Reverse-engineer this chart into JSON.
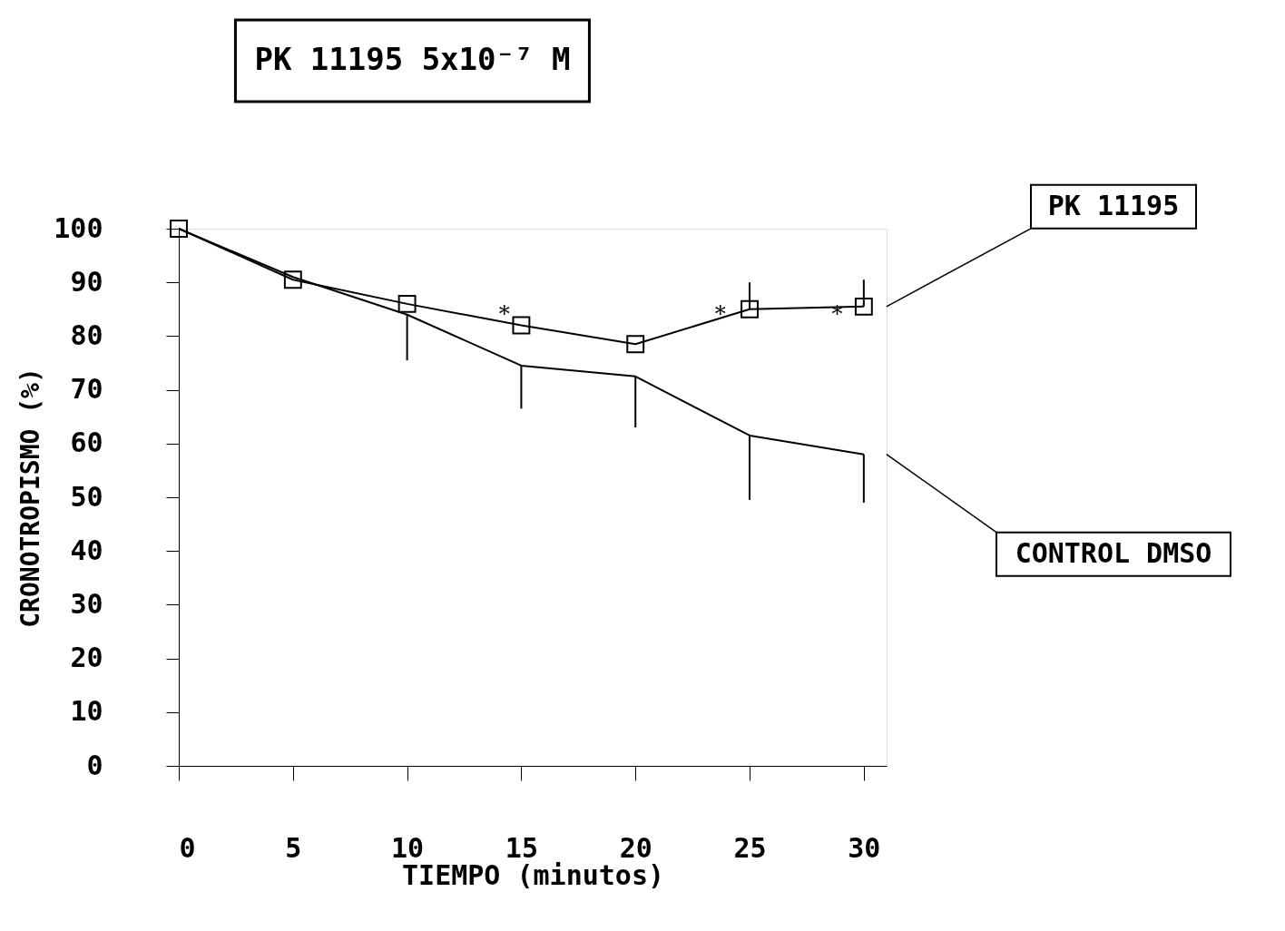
{
  "chart_data": {
    "type": "line",
    "title": "PK 11195 5x10⁻⁷ M",
    "xlabel": "TIEMPO (minutos)",
    "ylabel": "CRONOTROPISMO (%)",
    "x": [
      0,
      5,
      10,
      15,
      20,
      25,
      30
    ],
    "series": [
      {
        "name": "PK 11195",
        "color": "#000000",
        "marker": "square",
        "values": [
          100,
          90.5,
          86,
          82,
          78.5,
          85,
          85.5
        ],
        "errors": [
          null,
          null,
          null,
          null,
          null,
          [
            85,
            90
          ],
          [
            85.5,
            90.5
          ]
        ]
      },
      {
        "name": "CONTROL DMSO",
        "color": "#000000",
        "marker": "none",
        "values": [
          100,
          91,
          84,
          74.5,
          72.5,
          61.5,
          58
        ],
        "errors": [
          null,
          null,
          [
            75.5,
            84
          ],
          [
            66.5,
            74.5
          ],
          [
            63,
            72.5
          ],
          [
            49.5,
            61.5
          ],
          [
            49,
            58
          ]
        ]
      }
    ],
    "annotations": [
      "*",
      "*",
      "*"
    ],
    "xlim": [
      0,
      31
    ],
    "xticks": [
      0,
      5,
      10,
      15,
      20,
      25,
      30
    ],
    "ylim": [
      0,
      100
    ],
    "yticks": [
      0,
      10,
      20,
      30,
      40,
      50,
      60,
      70,
      80,
      90,
      100
    ],
    "grid": false,
    "line_style": "solid"
  }
}
